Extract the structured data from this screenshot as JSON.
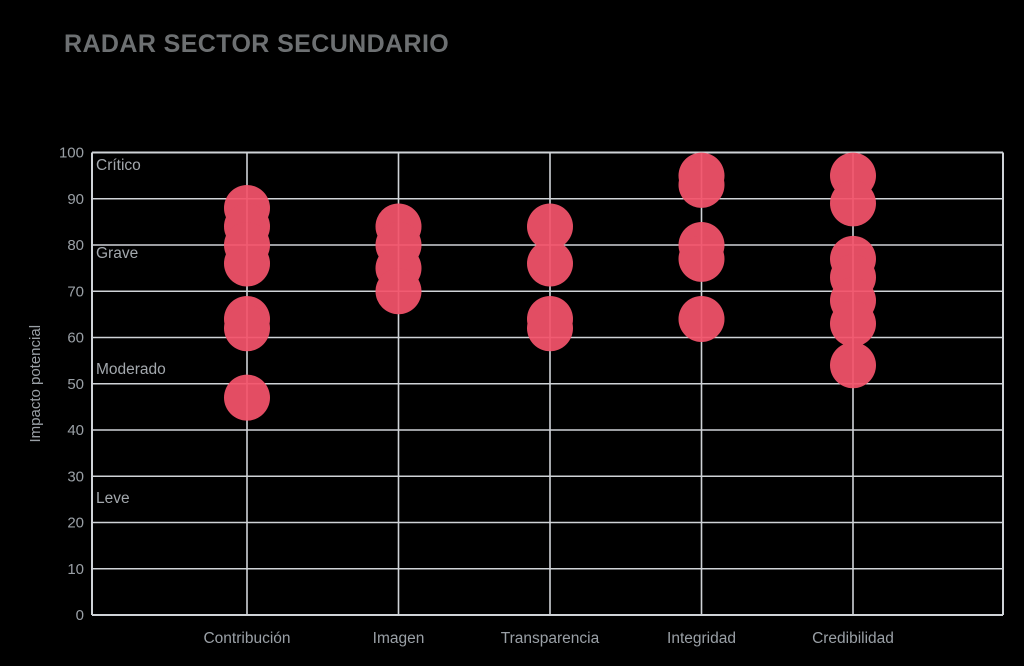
{
  "page": {
    "background_color": "#000000"
  },
  "header": {
    "title": "RADAR SECTOR SECUNDARIO",
    "title_color": "#6d7072"
  },
  "chart_data": {
    "type": "scatter",
    "title": "RADAR SECTOR SECUNDARIO",
    "xlabel": "",
    "ylabel": "Impacto potencial",
    "categories": [
      "Contribución",
      "Imagen",
      "Transparencia",
      "Integridad",
      "Credibilidad"
    ],
    "series": [
      {
        "name": "Contribución",
        "values": [
          88,
          84,
          80,
          76,
          64,
          62,
          47
        ]
      },
      {
        "name": "Imagen",
        "values": [
          84,
          80,
          75,
          70
        ]
      },
      {
        "name": "Transparencia",
        "values": [
          84,
          76,
          64,
          62
        ]
      },
      {
        "name": "Integridad",
        "values": [
          95,
          93,
          80,
          77,
          64
        ]
      },
      {
        "name": "Credibilidad",
        "values": [
          95,
          89,
          77,
          73,
          68,
          63,
          54
        ]
      }
    ],
    "ylim": [
      0,
      100
    ],
    "yticks": [
      0,
      10,
      20,
      30,
      40,
      50,
      60,
      70,
      80,
      90,
      100
    ],
    "grid": true,
    "legend": false,
    "annotations": [
      {
        "text": "Crítico",
        "y": 97.3
      },
      {
        "text": "Grave",
        "y": 78.3
      },
      {
        "text": "Moderado",
        "y": 53.2
      },
      {
        "text": "Leve",
        "y": 25.3
      }
    ],
    "marker_color": "#F4536B",
    "marker_opacity": 0.93,
    "marker_radius_px": 23,
    "grid_color": "#cfd3d7",
    "axis_text_color": "#9aa0a6",
    "annotation_text_color": "#a3a8ad"
  }
}
